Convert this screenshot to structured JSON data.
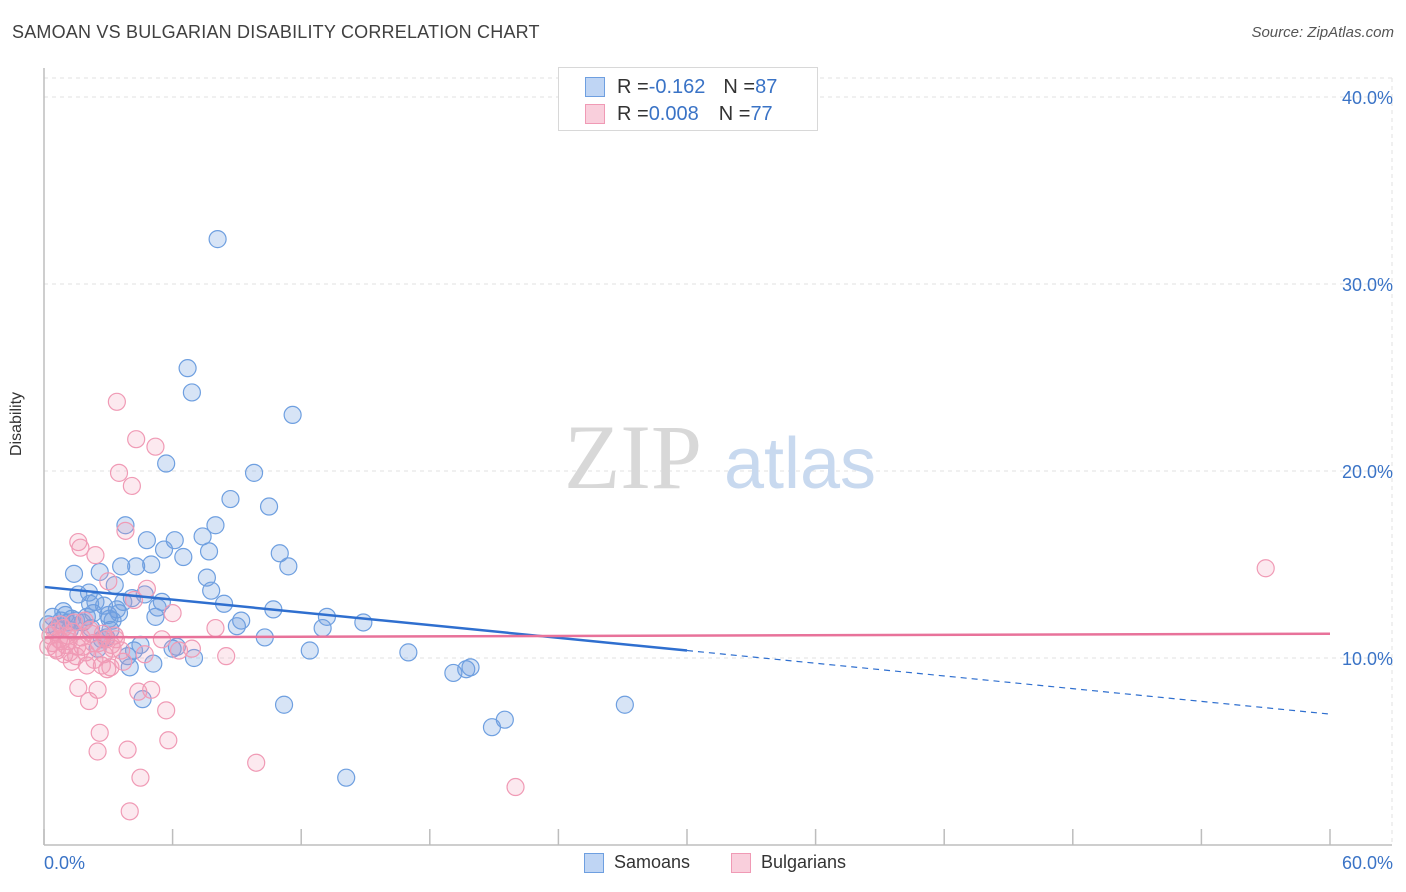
{
  "title": "SAMOAN VS BULGARIAN DISABILITY CORRELATION CHART",
  "source": "Source: ZipAtlas.com",
  "watermark": {
    "zip": "ZIP",
    "atlas": "atlas"
  },
  "colors": {
    "samoans": "#6e9fe0",
    "bulgarians": "#f09ab5",
    "samoans_line": "#2f6fcf",
    "bulgarians_line": "#e8729a",
    "tick_text": "#3a73c6"
  },
  "legend": {
    "samoans": {
      "r_label": "R = ",
      "r_value": "-0.162",
      "n_label": "N = ",
      "n_value": "87"
    },
    "bulgarians": {
      "r_label": "R = ",
      "r_value": "0.008",
      "n_label": "N = ",
      "n_value": "77"
    }
  },
  "chart_data": {
    "type": "scatter",
    "title": "SAMOAN VS BULGARIAN DISABILITY CORRELATION CHART",
    "xlabel": "",
    "ylabel": "Disability",
    "xlim": [
      0,
      60
    ],
    "ylim": [
      0,
      40
    ],
    "x_tick_labels": [
      "0.0%",
      "60.0%"
    ],
    "y_ticks": [
      10,
      20,
      30,
      40
    ],
    "y_tick_labels": [
      "10.0%",
      "20.0%",
      "30.0%",
      "40.0%"
    ],
    "grid": true,
    "legend_position": "top-center",
    "series": [
      {
        "name": "Samoans",
        "trend": {
          "x": [
            0,
            30,
            60
          ],
          "y": [
            13.8,
            10.4,
            7.0
          ],
          "solid_until": 30
        },
        "points": [
          [
            0.2,
            11.8
          ],
          [
            0.4,
            12.2
          ],
          [
            0.6,
            11.6
          ],
          [
            0.8,
            12.0
          ],
          [
            1.0,
            12.3
          ],
          [
            1.2,
            11.5
          ],
          [
            1.4,
            14.5
          ],
          [
            1.5,
            12.0
          ],
          [
            1.6,
            13.4
          ],
          [
            1.8,
            11.9
          ],
          [
            2.0,
            12.2
          ],
          [
            2.1,
            13.5
          ],
          [
            2.2,
            11.6
          ],
          [
            2.3,
            12.4
          ],
          [
            2.4,
            13.0
          ],
          [
            2.5,
            10.5
          ],
          [
            2.6,
            14.6
          ],
          [
            2.7,
            11.0
          ],
          [
            2.8,
            12.8
          ],
          [
            2.9,
            11.1
          ],
          [
            3.0,
            12.3
          ],
          [
            3.1,
            11.5
          ],
          [
            3.2,
            12.0
          ],
          [
            3.3,
            13.9
          ],
          [
            3.4,
            12.6
          ],
          [
            3.5,
            12.4
          ],
          [
            3.6,
            14.9
          ],
          [
            3.7,
            13.0
          ],
          [
            3.8,
            17.1
          ],
          [
            3.9,
            10.1
          ],
          [
            4.0,
            9.5
          ],
          [
            4.1,
            13.2
          ],
          [
            4.2,
            10.4
          ],
          [
            4.3,
            14.9
          ],
          [
            4.5,
            10.7
          ],
          [
            4.6,
            7.8
          ],
          [
            4.7,
            13.4
          ],
          [
            4.8,
            16.3
          ],
          [
            5.0,
            15.0
          ],
          [
            5.1,
            9.7
          ],
          [
            5.2,
            12.2
          ],
          [
            5.3,
            12.7
          ],
          [
            5.5,
            13.0
          ],
          [
            5.6,
            15.8
          ],
          [
            5.7,
            20.4
          ],
          [
            6.0,
            10.5
          ],
          [
            6.1,
            16.3
          ],
          [
            6.2,
            10.6
          ],
          [
            6.5,
            15.4
          ],
          [
            6.7,
            25.5
          ],
          [
            6.9,
            24.2
          ],
          [
            7.0,
            10.0
          ],
          [
            7.4,
            16.5
          ],
          [
            7.6,
            14.3
          ],
          [
            7.7,
            15.7
          ],
          [
            7.8,
            13.6
          ],
          [
            8.0,
            17.1
          ],
          [
            8.1,
            32.4
          ],
          [
            8.4,
            12.9
          ],
          [
            8.7,
            18.5
          ],
          [
            9.0,
            11.7
          ],
          [
            9.2,
            12.0
          ],
          [
            9.8,
            19.9
          ],
          [
            10.3,
            11.1
          ],
          [
            10.5,
            18.1
          ],
          [
            10.7,
            12.6
          ],
          [
            11.0,
            15.6
          ],
          [
            11.2,
            7.5
          ],
          [
            11.4,
            14.9
          ],
          [
            11.6,
            23.0
          ],
          [
            12.4,
            10.4
          ],
          [
            13.0,
            11.6
          ],
          [
            13.2,
            12.2
          ],
          [
            14.1,
            3.6
          ],
          [
            14.9,
            11.9
          ],
          [
            17.0,
            10.3
          ],
          [
            19.1,
            9.2
          ],
          [
            19.7,
            9.4
          ],
          [
            19.9,
            9.5
          ],
          [
            20.9,
            6.3
          ],
          [
            21.5,
            6.7
          ],
          [
            27.1,
            7.5
          ],
          [
            0.9,
            12.5
          ],
          [
            1.1,
            11.9
          ],
          [
            1.3,
            12.1
          ],
          [
            2.15,
            12.9
          ],
          [
            3.05,
            12.1
          ]
        ]
      },
      {
        "name": "Bulgarians",
        "trend": {
          "x": [
            0,
            60
          ],
          "y": [
            11.1,
            11.3
          ]
        },
        "points": [
          [
            0.2,
            10.6
          ],
          [
            0.3,
            11.2
          ],
          [
            0.4,
            10.8
          ],
          [
            0.5,
            11.4
          ],
          [
            0.6,
            10.4
          ],
          [
            0.7,
            11.0
          ],
          [
            0.8,
            10.9
          ],
          [
            0.9,
            11.6
          ],
          [
            1.0,
            10.7
          ],
          [
            1.1,
            11.2
          ],
          [
            1.2,
            10.3
          ],
          [
            1.3,
            9.8
          ],
          [
            1.4,
            11.9
          ],
          [
            1.5,
            10.1
          ],
          [
            1.6,
            16.2
          ],
          [
            1.6,
            8.4
          ],
          [
            1.7,
            15.9
          ],
          [
            1.8,
            10.6
          ],
          [
            1.9,
            12.0
          ],
          [
            2.0,
            9.6
          ],
          [
            2.1,
            7.7
          ],
          [
            2.2,
            11.3
          ],
          [
            2.3,
            10.8
          ],
          [
            2.4,
            15.5
          ],
          [
            2.5,
            8.3
          ],
          [
            2.5,
            5.0
          ],
          [
            2.6,
            6.0
          ],
          [
            2.7,
            9.6
          ],
          [
            2.8,
            10.2
          ],
          [
            2.9,
            11.0
          ],
          [
            3.0,
            14.1
          ],
          [
            3.1,
            9.5
          ],
          [
            3.2,
            10.5
          ],
          [
            3.3,
            11.2
          ],
          [
            3.4,
            23.7
          ],
          [
            3.5,
            19.9
          ],
          [
            3.6,
            10.4
          ],
          [
            3.7,
            9.8
          ],
          [
            3.8,
            16.8
          ],
          [
            3.9,
            5.1
          ],
          [
            4.0,
            1.8
          ],
          [
            4.1,
            19.2
          ],
          [
            4.2,
            13.1
          ],
          [
            4.3,
            21.7
          ],
          [
            4.4,
            8.2
          ],
          [
            4.5,
            3.6
          ],
          [
            4.7,
            10.2
          ],
          [
            4.8,
            13.7
          ],
          [
            5.0,
            8.3
          ],
          [
            5.2,
            21.3
          ],
          [
            5.5,
            11.0
          ],
          [
            5.7,
            7.2
          ],
          [
            5.8,
            5.6
          ],
          [
            6.0,
            12.4
          ],
          [
            6.3,
            10.4
          ],
          [
            6.9,
            10.5
          ],
          [
            8.0,
            11.6
          ],
          [
            8.5,
            10.1
          ],
          [
            9.9,
            4.4
          ],
          [
            22.0,
            3.1
          ],
          [
            57.0,
            14.8
          ],
          [
            0.35,
            11.7
          ],
          [
            0.55,
            10.5
          ],
          [
            0.75,
            11.8
          ],
          [
            0.95,
            10.2
          ],
          [
            1.15,
            10.9
          ],
          [
            1.35,
            11.4
          ],
          [
            1.55,
            10.6
          ],
          [
            1.75,
            11.1
          ],
          [
            1.95,
            10.3
          ],
          [
            2.15,
            11.5
          ],
          [
            2.35,
            9.9
          ],
          [
            2.55,
            10.8
          ],
          [
            2.75,
            11.3
          ],
          [
            2.95,
            9.4
          ],
          [
            3.15,
            10.7
          ],
          [
            3.35,
            11.0
          ]
        ]
      }
    ]
  },
  "bottom_legend": {
    "samoans": "Samoans",
    "bulgarians": "Bulgarians"
  }
}
